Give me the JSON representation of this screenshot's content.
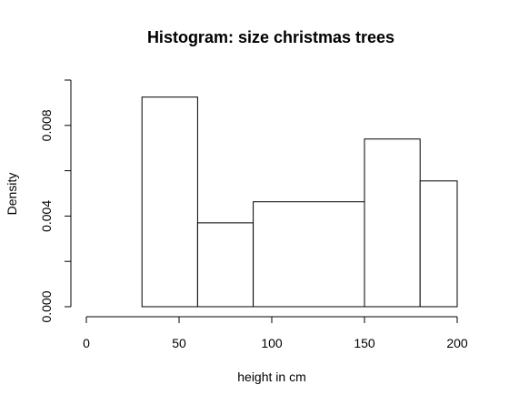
{
  "chart_data": {
    "type": "bar",
    "subtype": "histogram",
    "title": "Histogram: size christmas trees",
    "xlabel": "height in cm",
    "ylabel": "Density",
    "bins": [
      {
        "x0": 0,
        "x1": 30,
        "density": 0
      },
      {
        "x0": 30,
        "x1": 60,
        "density": 0.00925
      },
      {
        "x0": 60,
        "x1": 90,
        "density": 0.0037
      },
      {
        "x0": 90,
        "x1": 150,
        "density": 0.00463
      },
      {
        "x0": 150,
        "x1": 180,
        "density": 0.0074
      },
      {
        "x0": 180,
        "x1": 200,
        "density": 0.00555
      }
    ],
    "xlim": [
      0,
      200
    ],
    "ylim": [
      0,
      0.01
    ],
    "x_ticks": [
      0,
      50,
      100,
      150,
      200
    ],
    "x_tick_labels": [
      "0",
      "50",
      "100",
      "150",
      "200"
    ],
    "y_ticks": [
      0,
      0.002,
      0.004,
      0.006,
      0.008,
      0.01
    ],
    "y_tick_labels": [
      "0.000",
      "",
      "0.004",
      "",
      "0.008",
      ""
    ],
    "grid": false,
    "colors": {
      "bar_fill": "#ffffff",
      "bar_stroke": "#000000",
      "axis": "#000000"
    }
  }
}
